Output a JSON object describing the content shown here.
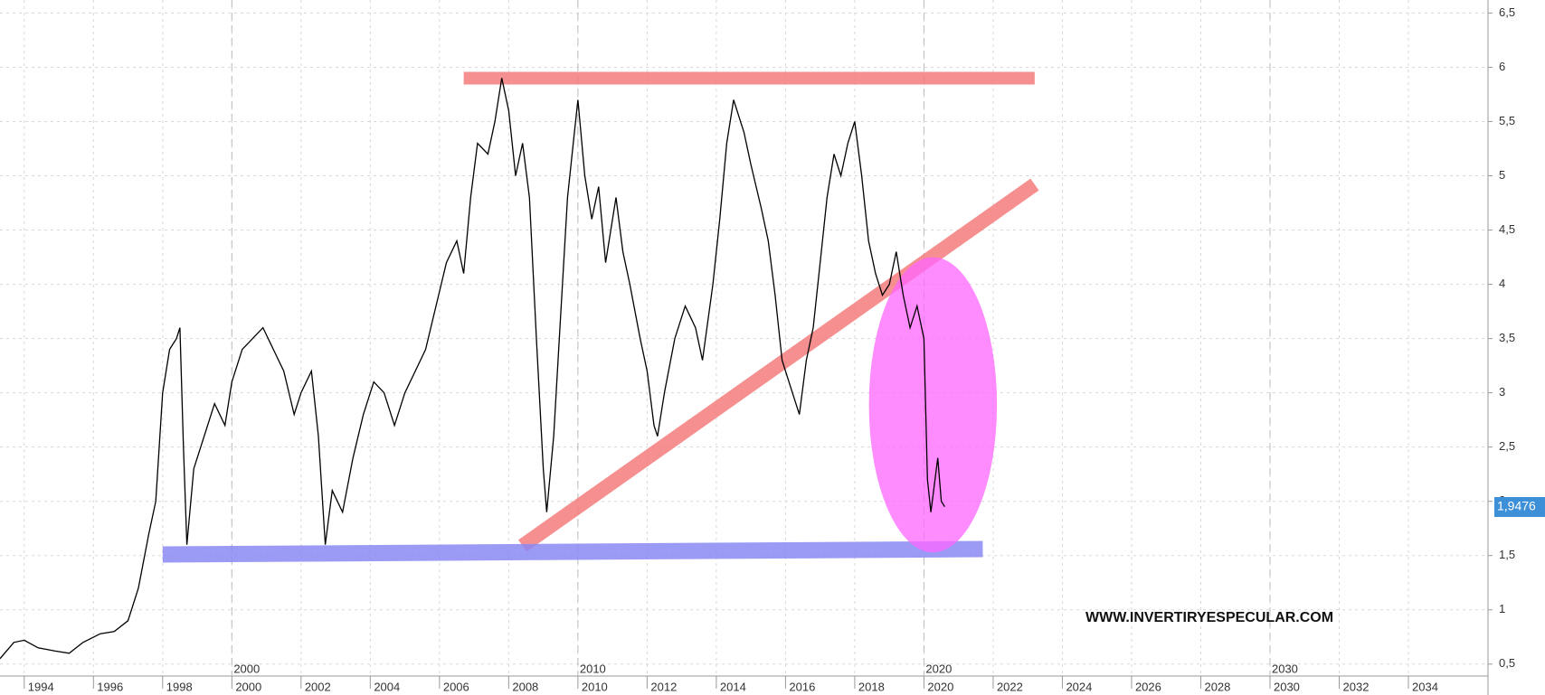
{
  "chart_data": {
    "type": "line",
    "series": [
      {
        "color": "#000000",
        "x": [
          1993.3,
          1993.7,
          1994.0,
          1994.4,
          1994.9,
          1995.3,
          1995.7,
          1996.2,
          1996.6,
          1997.0,
          1997.3,
          1997.6,
          1997.8,
          1998.0,
          1998.2,
          1998.4,
          1998.5,
          1998.6,
          1998.7,
          1998.9,
          1999.2,
          1999.5,
          1999.8,
          2000.0,
          2000.3,
          2000.6,
          2000.9,
          2001.2,
          2001.5,
          2001.8,
          2002.0,
          2002.3,
          2002.5,
          2002.7,
          2002.9,
          2003.2,
          2003.5,
          2003.8,
          2004.1,
          2004.4,
          2004.7,
          2005.0,
          2005.3,
          2005.6,
          2005.9,
          2006.2,
          2006.5,
          2006.7,
          2006.9,
          2007.1,
          2007.4,
          2007.6,
          2007.8,
          2008.0,
          2008.2,
          2008.4,
          2008.6,
          2008.8,
          2009.0,
          2009.1,
          2009.3,
          2009.5,
          2009.7,
          2009.9,
          2010.0,
          2010.2,
          2010.4,
          2010.6,
          2010.8,
          2011.1,
          2011.3,
          2011.5,
          2011.8,
          2012.0,
          2012.2,
          2012.3,
          2012.5,
          2012.8,
          2013.1,
          2013.4,
          2013.6,
          2013.9,
          2014.1,
          2014.3,
          2014.5,
          2014.8,
          2015.0,
          2015.3,
          2015.5,
          2015.7,
          2015.9,
          2016.1,
          2016.4,
          2016.6,
          2016.8,
          2017.0,
          2017.2,
          2017.4,
          2017.6,
          2017.8,
          2018.0,
          2018.2,
          2018.4,
          2018.6,
          2018.8,
          2019.0,
          2019.2,
          2019.4,
          2019.6,
          2019.8,
          2020.0,
          2020.1,
          2020.2,
          2020.4,
          2020.5,
          2020.6
        ],
        "values": [
          0.55,
          0.7,
          0.72,
          0.65,
          0.62,
          0.6,
          0.7,
          0.78,
          0.8,
          0.9,
          1.2,
          1.7,
          2.0,
          3.0,
          3.4,
          3.5,
          3.6,
          2.5,
          1.6,
          2.3,
          2.6,
          2.9,
          2.7,
          3.1,
          3.4,
          3.5,
          3.6,
          3.4,
          3.2,
          2.8,
          3.0,
          3.2,
          2.6,
          1.6,
          2.1,
          1.9,
          2.4,
          2.8,
          3.1,
          3.0,
          2.7,
          3.0,
          3.2,
          3.4,
          3.8,
          4.2,
          4.4,
          4.1,
          4.8,
          5.3,
          5.2,
          5.5,
          5.9,
          5.6,
          5.0,
          5.3,
          4.8,
          3.5,
          2.3,
          1.9,
          2.6,
          3.7,
          4.8,
          5.4,
          5.7,
          5.0,
          4.6,
          4.9,
          4.2,
          4.8,
          4.3,
          4.0,
          3.5,
          3.2,
          2.7,
          2.6,
          3.0,
          3.5,
          3.8,
          3.6,
          3.3,
          4.0,
          4.6,
          5.3,
          5.7,
          5.4,
          5.1,
          4.7,
          4.4,
          3.9,
          3.3,
          3.1,
          2.8,
          3.3,
          3.6,
          4.2,
          4.8,
          5.2,
          5.0,
          5.3,
          5.5,
          5.0,
          4.4,
          4.1,
          3.9,
          4.0,
          4.3,
          3.9,
          3.6,
          3.8,
          3.5,
          2.2,
          1.9,
          2.4,
          2.0,
          1.95
        ]
      }
    ],
    "xlim": [
      1993.3,
      2036.3
    ],
    "ylim": [
      0.39,
      6.62
    ],
    "xticks": [
      1994,
      1996,
      1998,
      2000,
      2002,
      2004,
      2006,
      2008,
      2010,
      2012,
      2014,
      2016,
      2018,
      2020,
      2022,
      2024,
      2026,
      2028,
      2030,
      2032,
      2034
    ],
    "x_decade_ticks": [
      2000,
      2010,
      2020,
      2030
    ],
    "yticks": [
      {
        "value": 0.5,
        "label": "0,5"
      },
      1,
      {
        "value": 1.5,
        "label": "1,5"
      },
      2,
      {
        "value": 2.5,
        "label": "2,5"
      },
      3,
      {
        "value": 3.5,
        "label": "3,5"
      },
      4,
      {
        "value": 4.5,
        "label": "4,5"
      },
      5,
      {
        "value": 5.5,
        "label": "5,5"
      },
      6,
      {
        "value": 6.5,
        "label": "6,5"
      }
    ],
    "last_value": 1.9476,
    "last_value_label": "1,9476",
    "trendlines": [
      {
        "color": "#f47c7c",
        "x": [
          2006.7,
          2023.2
        ],
        "y": [
          5.9,
          5.9
        ]
      },
      {
        "color": "#f47c7c",
        "x": [
          2008.4,
          2023.2
        ],
        "y": [
          1.59,
          4.92
        ]
      },
      {
        "color": "#8a8af5",
        "x": [
          1998.0,
          2021.7
        ],
        "y": [
          1.51,
          1.56
        ]
      }
    ],
    "ellipse": {
      "color": "#ff66ff",
      "cx": 2020.26,
      "cy": 2.89,
      "rx": 1.85,
      "ry": 1.36
    },
    "watermark": "WWW.INVERTIRYESPECULAR.COM",
    "grid": true
  }
}
